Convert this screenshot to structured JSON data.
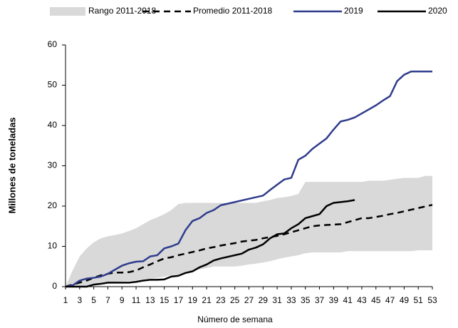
{
  "chart_data": {
    "type": "line",
    "x_label": "Número de semana",
    "y_label": "Millones de toneladas",
    "x": [
      1,
      2,
      3,
      4,
      5,
      6,
      7,
      8,
      9,
      10,
      11,
      12,
      13,
      14,
      15,
      16,
      17,
      18,
      19,
      20,
      21,
      22,
      23,
      24,
      25,
      26,
      27,
      28,
      29,
      30,
      31,
      32,
      33,
      34,
      35,
      36,
      37,
      38,
      39,
      40,
      41,
      42,
      43,
      44,
      45,
      46,
      47,
      48,
      49,
      50,
      51,
      52,
      53
    ],
    "xlim": [
      1,
      53
    ],
    "xticks": [
      1,
      3,
      5,
      7,
      9,
      11,
      13,
      15,
      17,
      19,
      21,
      23,
      25,
      27,
      29,
      31,
      33,
      35,
      37,
      39,
      41,
      43,
      45,
      47,
      49,
      51,
      53
    ],
    "ylim": [
      0,
      60
    ],
    "yticks": [
      0,
      10,
      20,
      30,
      40,
      50,
      60
    ],
    "band": {
      "name": "Rango 2011-2018",
      "color": "#d9d9d9",
      "low": [
        0,
        0,
        0,
        0.2,
        0.5,
        0.8,
        1,
        1.2,
        1.3,
        1.4,
        1.5,
        1.8,
        2,
        2.2,
        2.5,
        2.8,
        3,
        3.5,
        4,
        4.3,
        4.6,
        5,
        5,
        5,
        5,
        5.2,
        5.5,
        5.7,
        6,
        6.3,
        6.8,
        7.2,
        7.5,
        7.8,
        8.3,
        8.5,
        8.5,
        8.5,
        8.5,
        8.5,
        8.8,
        8.8,
        8.8,
        8.8,
        8.8,
        8.8,
        8.8,
        8.8,
        8.8,
        8.8,
        9,
        9,
        9
      ],
      "high": [
        0,
        4,
        7.5,
        9.5,
        11,
        12,
        12.5,
        12.8,
        13.2,
        13.8,
        14.5,
        15.5,
        16.5,
        17.2,
        18,
        19,
        20.5,
        20.8,
        20.8,
        20.8,
        20.8,
        20.8,
        20.8,
        20.8,
        20.8,
        20.8,
        20.8,
        20.8,
        21.2,
        21.5,
        22,
        22.2,
        22.5,
        23,
        26,
        26,
        26,
        26,
        26,
        26,
        26,
        26,
        26,
        26.3,
        26.3,
        26.3,
        26.5,
        26.8,
        27,
        27,
        27,
        27.5,
        27.5
      ]
    },
    "series": [
      {
        "name": "Promedio 2011-2018",
        "color": "#000000",
        "dashed": true,
        "values": [
          0,
          0.5,
          1,
          1.5,
          2.2,
          2.8,
          3.2,
          3.5,
          3.5,
          3.6,
          4,
          4.8,
          5.5,
          6.3,
          7,
          7.3,
          7.8,
          8.2,
          8.6,
          9,
          9.5,
          9.8,
          10.2,
          10.5,
          10.8,
          11.2,
          11.4,
          11.6,
          12,
          12.3,
          12.6,
          13,
          13.5,
          14,
          14.5,
          15,
          15.2,
          15.3,
          15.4,
          15.5,
          16,
          16.5,
          17,
          17,
          17.3,
          17.6,
          18,
          18.3,
          18.7,
          19.1,
          19.5,
          19.9,
          20.3
        ]
      },
      {
        "name": "2019",
        "color": "#2f3c8c",
        "dashed": false,
        "values": [
          0,
          0.3,
          1.5,
          2,
          2.2,
          2.5,
          3.2,
          4.2,
          5.2,
          5.8,
          6.2,
          6.3,
          7.5,
          7.8,
          9.5,
          10,
          10.7,
          14,
          16.3,
          17,
          18.3,
          19,
          20.2,
          20.6,
          21,
          21.4,
          21.8,
          22.2,
          22.6,
          24,
          25.3,
          26.6,
          27,
          31.5,
          32.5,
          34.2,
          35.5,
          36.8,
          39,
          41,
          41.4,
          42,
          43,
          44,
          45,
          46.2,
          47.3,
          51,
          52.6,
          53.4,
          53.4,
          53.4,
          53.4
        ]
      },
      {
        "name": "2020",
        "color": "#000000",
        "dashed": false,
        "values": [
          0,
          0,
          0,
          0,
          0.5,
          0.7,
          1,
          1,
          1,
          1,
          1.2,
          1.5,
          1.7,
          1.7,
          1.8,
          2.5,
          2.7,
          3.4,
          3.8,
          4.8,
          5.5,
          6.5,
          7,
          7.4,
          7.8,
          8.2,
          9.2,
          9.7,
          10.5,
          12,
          13,
          13.2,
          14.5,
          15.5,
          17,
          17.5,
          18,
          20,
          20.8,
          21,
          21.2,
          21.5,
          null,
          null,
          null,
          null,
          null,
          null,
          null,
          null,
          null,
          null,
          null
        ]
      }
    ]
  }
}
